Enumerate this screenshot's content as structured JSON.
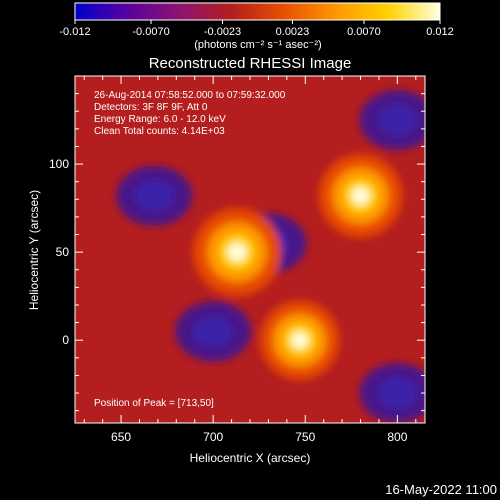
{
  "chart_data": {
    "type": "heatmap",
    "title": "Reconstructed RHESSI Image",
    "xlabel": "Heliocentric X (arcsec)",
    "ylabel": "Heliocentric Y (arcsec)",
    "xlim": [
      625,
      815
    ],
    "ylim": [
      -47,
      150
    ],
    "x_ticks": [
      650,
      700,
      750,
      800
    ],
    "y_ticks": [
      0,
      50,
      100
    ],
    "colorbar": {
      "label": "(photons cm⁻² s⁻¹ asec⁻²)",
      "range": [
        -0.012,
        0.012
      ],
      "ticks": [
        "-0.012",
        "-0.0070",
        "-0.0023",
        "0.0023",
        "0.0070",
        "0.012"
      ],
      "colors": [
        "#0000c8",
        "#5a00a0",
        "#8c1470",
        "#b41e1e",
        "#e65000",
        "#ff9600",
        "#ffd200",
        "#ffffdc"
      ]
    },
    "annotations": [
      "26-Aug-2014 07:58:52.000 to 07:59:32.000",
      "Detectors: 3F 8F 9F, Att 0",
      "Energy Range: 6.0 - 12.0 keV",
      "Clean     Total counts: 4.14E+03"
    ],
    "peak_label": "Position of Peak = [713,50]",
    "sources": [
      {
        "x": 713,
        "y": 50,
        "relative_intensity": 1.0
      },
      {
        "x": 780,
        "y": 82,
        "relative_intensity": 0.95
      },
      {
        "x": 747,
        "y": 0,
        "relative_intensity": 0.9
      }
    ],
    "negative_regions": [
      {
        "x": 668,
        "y": 82
      },
      {
        "x": 700,
        "y": 5
      },
      {
        "x": 730,
        "y": 55
      },
      {
        "x": 800,
        "y": -30
      },
      {
        "x": 800,
        "y": 125
      }
    ],
    "grid": false
  },
  "footer": {
    "timestamp": "16-May-2022 11:00"
  }
}
